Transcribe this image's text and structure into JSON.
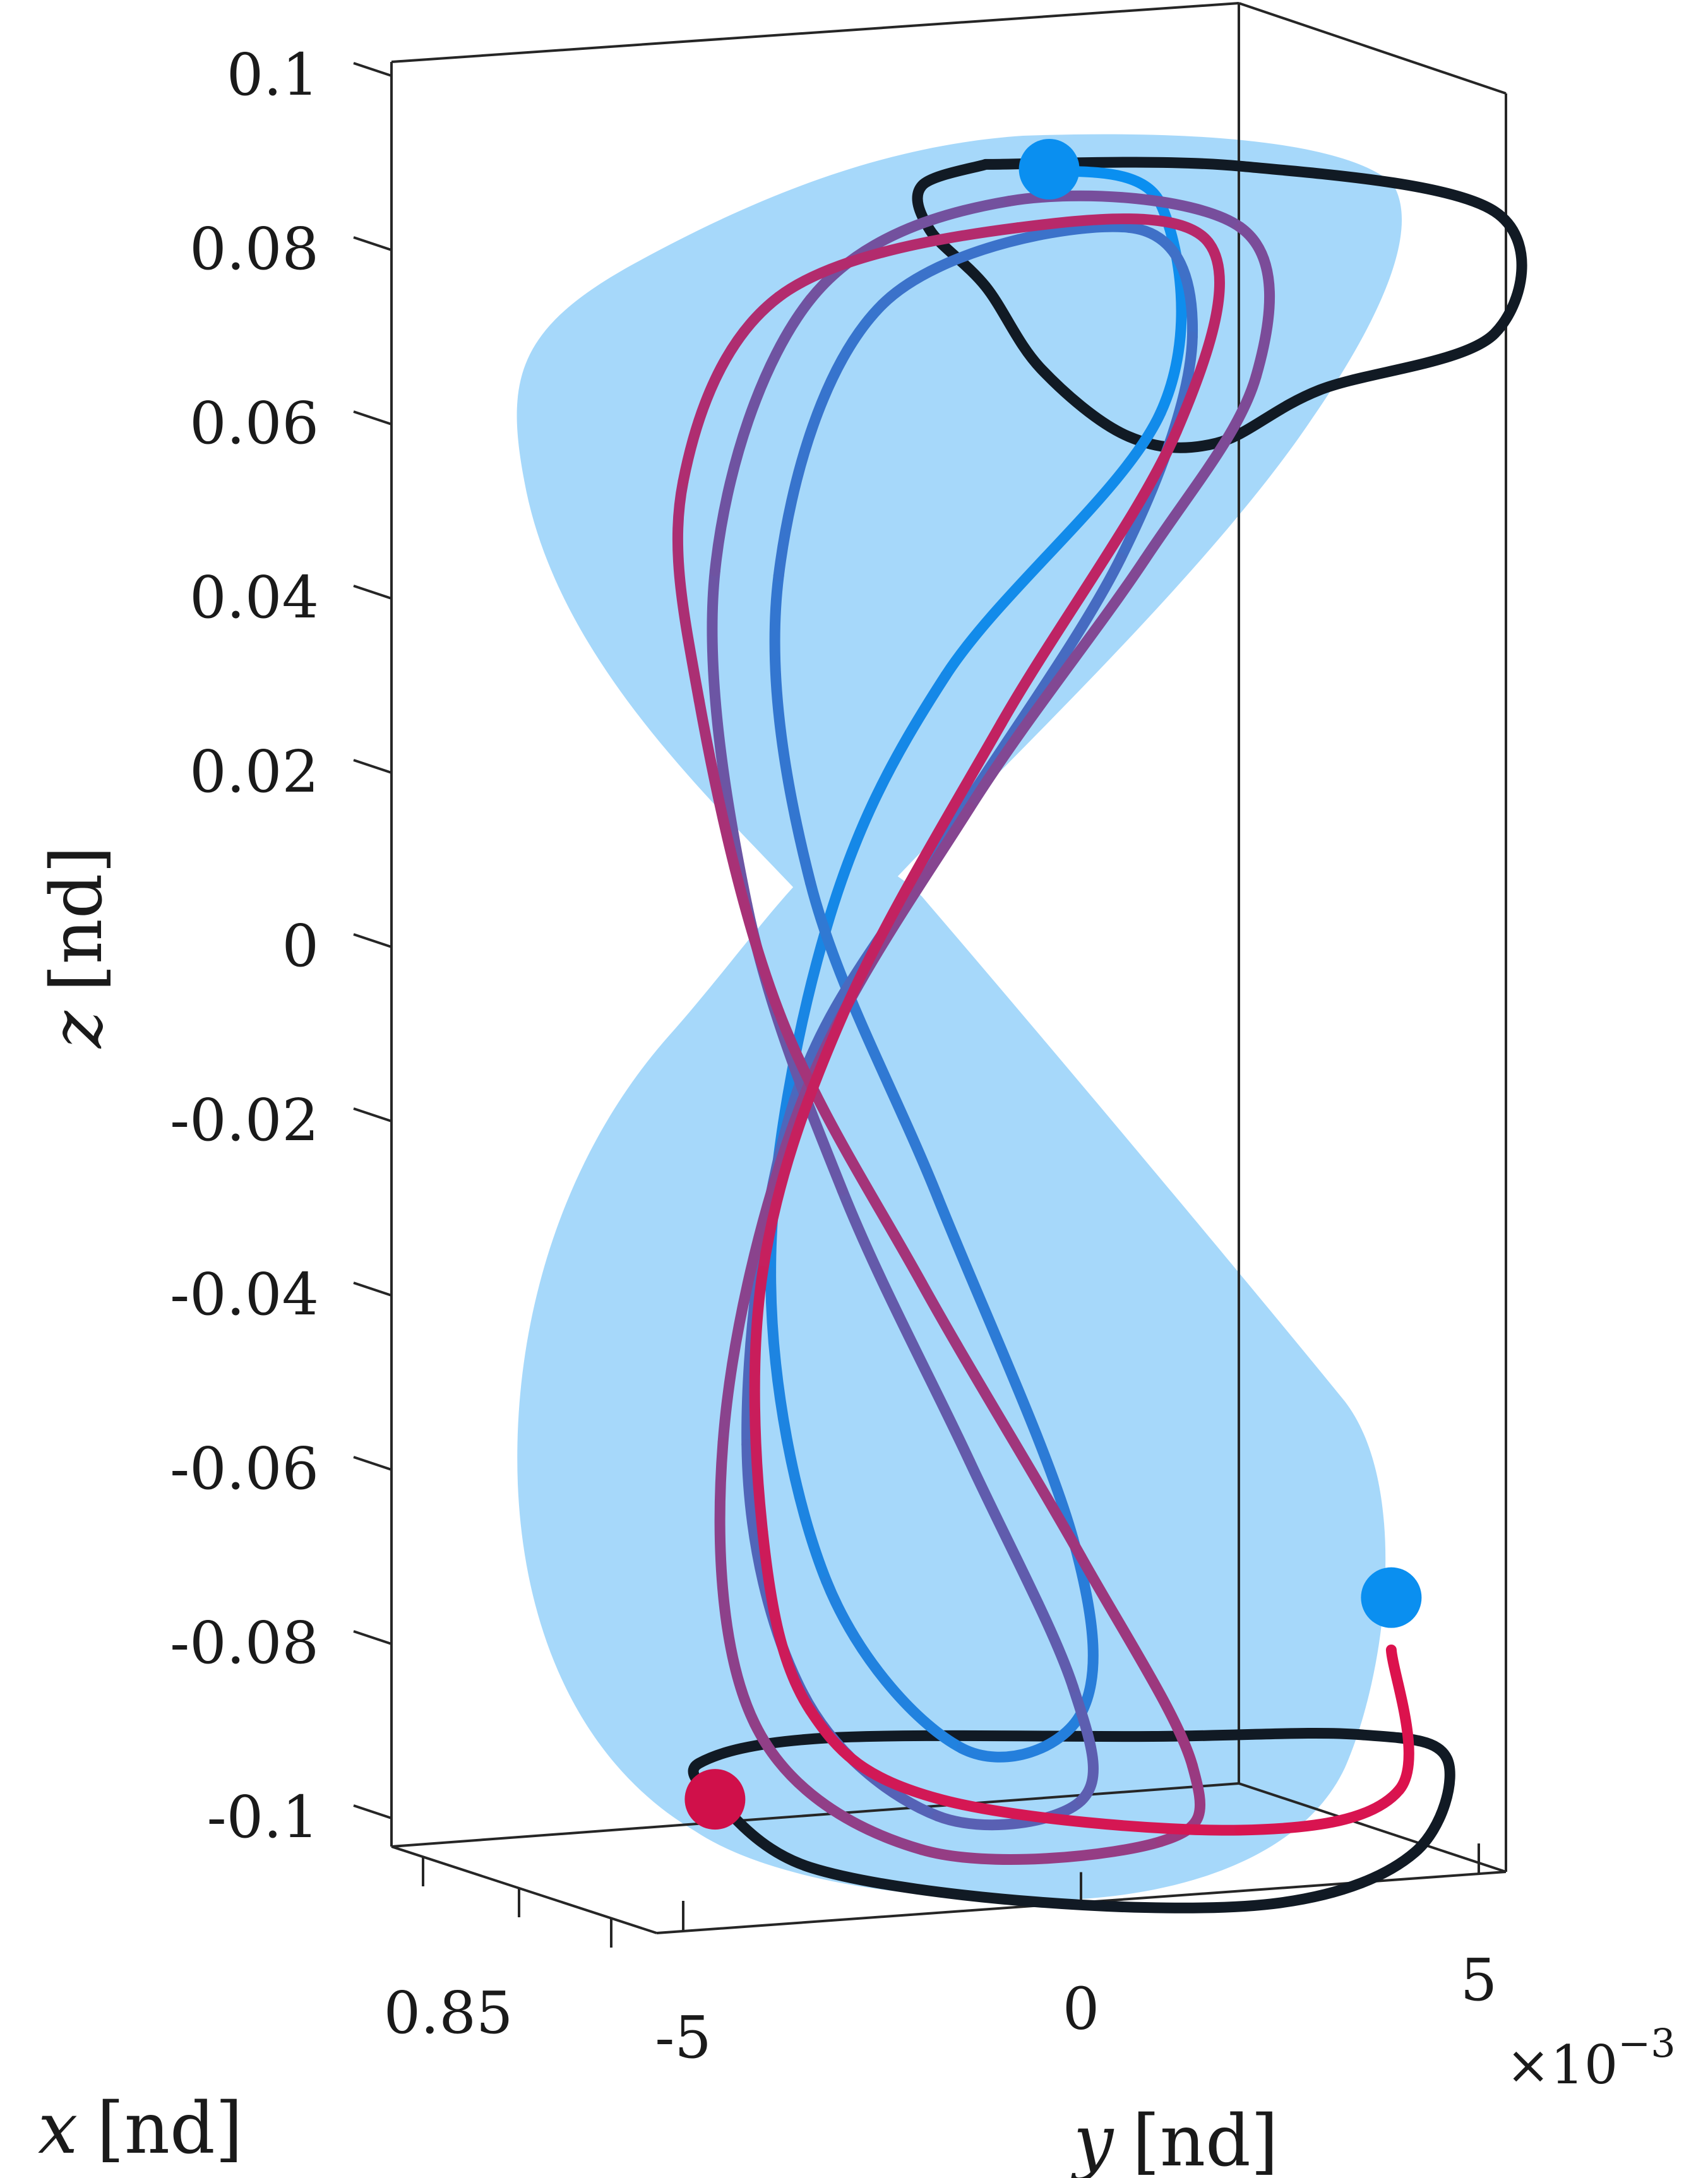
{
  "chart_data": {
    "type": "line",
    "projection": "3d",
    "xlabel_var": "x",
    "ylabel_var": "y",
    "zlabel_var": "z",
    "unit": "[nd]",
    "x_ticks": [
      "0.85"
    ],
    "y_ticks": [
      "-5",
      "0",
      "5"
    ],
    "y_multiplier_base": "×10",
    "y_multiplier_exp": "−3",
    "z_ticks": [
      "0.1",
      "0.08",
      "0.06",
      "0.04",
      "0.02",
      "0",
      "-0.02",
      "-0.04",
      "-0.06",
      "-0.08",
      "-0.1"
    ],
    "zlim": [
      -0.1,
      0.1
    ],
    "ylim": [
      -0.005,
      0.005
    ],
    "grid": false,
    "colors": {
      "surface": "#a6d8fa",
      "orbit_family_boundary": "#111a24",
      "trajectory_start": "#0a8ff0",
      "trajectory_end": "#e0104a",
      "start_marker": "#0a8ff0",
      "end_marker": "#d0104a"
    },
    "series": [
      {
        "role": "boundary-orbit",
        "segment": "upper-loop",
        "points_yz": [
          [
            -0.0012,
            0.089
          ],
          [
            0.002,
            0.091
          ],
          [
            0.0052,
            0.088
          ],
          [
            0.0052,
            0.074
          ],
          [
            0.003,
            0.066
          ],
          [
            0.0017,
            0.059
          ],
          [
            0.0006,
            0.059
          ],
          [
            -0.0005,
            0.066
          ],
          [
            -0.0012,
            0.075
          ],
          [
            -0.0019,
            0.081
          ],
          [
            -0.002,
            0.086
          ],
          [
            -0.0012,
            0.089
          ]
        ]
      },
      {
        "role": "boundary-orbit",
        "segment": "lower-loop",
        "points_yz": [
          [
            -0.0046,
            -0.101
          ],
          [
            -0.0048,
            -0.097
          ],
          [
            -0.0032,
            -0.093
          ],
          [
            0.0009,
            -0.09
          ],
          [
            0.0035,
            -0.088
          ],
          [
            0.0046,
            -0.09
          ],
          [
            0.0042,
            -0.101
          ],
          [
            0.0025,
            -0.108
          ],
          [
            -0.0005,
            -0.11
          ],
          [
            -0.0034,
            -0.108
          ],
          [
            -0.0046,
            -0.101
          ]
        ]
      },
      {
        "role": "trajectory",
        "points_yz": [
          [
            -0.0004,
            0.089
          ],
          [
            0.001,
            0.086
          ],
          [
            0.001,
            0.062
          ],
          [
            -0.0017,
            0.03
          ],
          [
            -0.0032,
            0.0
          ],
          [
            -0.0039,
            -0.04
          ],
          [
            -0.0032,
            -0.075
          ],
          [
            -0.0015,
            -0.093
          ],
          [
            0.0,
            -0.088
          ],
          [
            -0.0001,
            -0.068
          ],
          [
            -0.0018,
            -0.03
          ],
          [
            -0.0034,
            0.005
          ],
          [
            -0.0038,
            0.04
          ],
          [
            -0.0025,
            0.072
          ],
          [
            0.0006,
            0.083
          ],
          [
            0.0014,
            0.071
          ],
          [
            0.0005,
            0.045
          ],
          [
            -0.0018,
            0.01
          ],
          [
            -0.0036,
            -0.02
          ],
          [
            -0.0042,
            -0.06
          ],
          [
            -0.0035,
            -0.088
          ],
          [
            -0.0018,
            -0.101
          ],
          [
            0.0,
            -0.098
          ],
          [
            -0.0001,
            -0.085
          ],
          [
            -0.0014,
            -0.06
          ],
          [
            -0.003,
            -0.03
          ],
          [
            -0.0042,
            0.002
          ],
          [
            -0.0046,
            0.04
          ],
          [
            -0.0034,
            0.072
          ],
          [
            -0.0009,
            0.085
          ],
          [
            0.002,
            0.084
          ],
          [
            0.0022,
            0.067
          ],
          [
            0.0008,
            0.045
          ],
          [
            -0.0014,
            0.015
          ],
          [
            -0.0035,
            -0.02
          ],
          [
            -0.0045,
            -0.06
          ],
          [
            -0.0041,
            -0.092
          ],
          [
            -0.002,
            -0.105
          ],
          [
            0.001,
            -0.102
          ],
          [
            0.0014,
            -0.093
          ],
          [
            0.0,
            -0.07
          ],
          [
            -0.002,
            -0.04
          ],
          [
            -0.0038,
            -0.01
          ],
          [
            -0.0048,
            0.025
          ],
          [
            -0.005,
            0.05
          ],
          [
            -0.0038,
            0.072
          ],
          [
            -0.0008,
            0.082
          ],
          [
            0.0016,
            0.082
          ],
          [
            0.0012,
            0.06
          ],
          [
            -0.001,
            0.025
          ],
          [
            -0.003,
            -0.01
          ],
          [
            -0.004,
            -0.04
          ],
          [
            -0.004,
            -0.07
          ],
          [
            -0.0034,
            -0.09
          ],
          [
            -0.0018,
            -0.099
          ],
          [
            0.002,
            -0.1
          ],
          [
            0.004,
            -0.094
          ],
          [
            0.0039,
            -0.078
          ]
        ]
      }
    ],
    "markers": [
      {
        "role": "start",
        "y": -0.0004,
        "z": 0.089
      },
      {
        "role": "start",
        "y": 0.0039,
        "z": -0.072
      },
      {
        "role": "end",
        "y": -0.0046,
        "z": -0.101
      }
    ]
  }
}
